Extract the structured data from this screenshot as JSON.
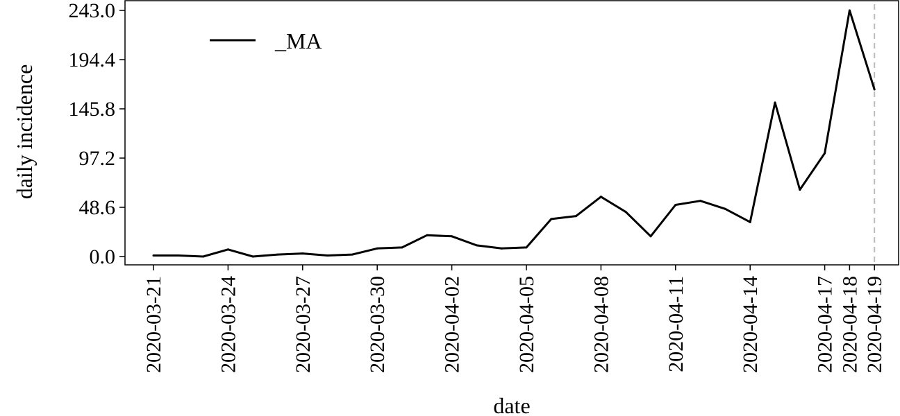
{
  "chart_data": {
    "type": "line",
    "xlabel": "date",
    "ylabel": "daily incidence",
    "ylim": [
      0,
      243
    ],
    "yticks": [
      "0.0",
      "48.6",
      "97.2",
      "145.8",
      "194.4",
      "243.0"
    ],
    "xticks": [
      "2020-03-21",
      "2020-03-24",
      "2020-03-27",
      "2020-03-30",
      "2020-04-02",
      "2020-04-05",
      "2020-04-08",
      "2020-04-11",
      "2020-04-14",
      "2020-04-17",
      "2020-04-18",
      "2020-04-19"
    ],
    "legend": {
      "placement": "top-left"
    },
    "vline": {
      "date": "2020-04-19",
      "style": "dashed",
      "color": "#bbbbbb"
    },
    "series": [
      {
        "name": "_MA",
        "color": "#000000",
        "x": [
          "2020-03-21",
          "2020-03-22",
          "2020-03-23",
          "2020-03-24",
          "2020-03-25",
          "2020-03-26",
          "2020-03-27",
          "2020-03-28",
          "2020-03-29",
          "2020-03-30",
          "2020-03-31",
          "2020-04-01",
          "2020-04-02",
          "2020-04-03",
          "2020-04-04",
          "2020-04-05",
          "2020-04-06",
          "2020-04-07",
          "2020-04-08",
          "2020-04-09",
          "2020-04-10",
          "2020-04-11",
          "2020-04-12",
          "2020-04-13",
          "2020-04-14",
          "2020-04-15",
          "2020-04-16",
          "2020-04-17",
          "2020-04-18",
          "2020-04-19"
        ],
        "y": [
          1,
          1,
          0,
          7,
          0,
          2,
          3,
          1,
          2,
          8,
          9,
          21,
          20,
          11,
          8,
          9,
          37,
          40,
          59,
          44,
          20,
          51,
          55,
          47,
          34,
          152,
          66,
          102,
          243,
          165
        ]
      }
    ]
  }
}
